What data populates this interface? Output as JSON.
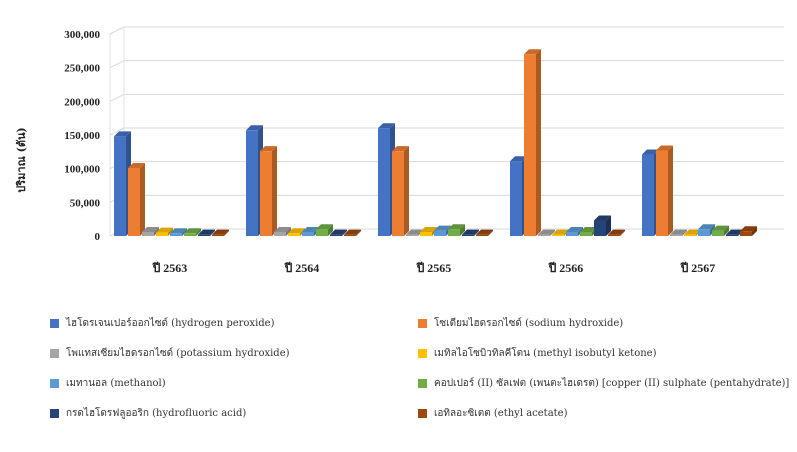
{
  "chart_data": {
    "type": "bar",
    "style": "3d-clustered-column",
    "ylabel": "ปริมาณ (ตัน)",
    "ylim": [
      0,
      300000
    ],
    "yticks": [
      0,
      50000,
      100000,
      150000,
      200000,
      250000,
      300000
    ],
    "ytick_labels": [
      "0",
      "50,000",
      "100,000",
      "150,000",
      "200,000",
      "250,000",
      "300,000"
    ],
    "grid": true,
    "legend_position": "bottom",
    "categories": [
      "ปี 2563",
      "ปี 2564",
      "ปี 2565",
      "ปี 2566",
      "ปี 2567"
    ],
    "series": [
      {
        "name": "ไฮโดรเจนเปอร์ออกไซด์ (hydrogen peroxide)",
        "color": "#4472C4",
        "values": [
          148000,
          157000,
          160000,
          111000,
          121000
        ]
      },
      {
        "name": "โซเดียมไฮดรอกไซด์ (sodium hydroxide)",
        "color": "#ED7D31",
        "values": [
          101000,
          126000,
          126000,
          270000,
          127000
        ]
      },
      {
        "name": "โพแทสเซียมไฮดรอกไซด์ (potassium hydroxide)",
        "color": "#A5A5A5",
        "values": [
          6000,
          6000,
          2000,
          2000,
          2000
        ]
      },
      {
        "name": "เมทิลไอโซบิวทิลคีโตน (methyl isobutyl ketone)",
        "color": "#FFC000",
        "values": [
          5000,
          4000,
          6000,
          2000,
          2000
        ]
      },
      {
        "name": "เมทานอล (methanol)",
        "color": "#5B9BD5",
        "values": [
          4000,
          6000,
          8000,
          6000,
          10000
        ]
      },
      {
        "name": "คอปเปอร์ (II) ซัลเฟต (เพนตะไฮเดรต) [copper (II) sulphate (pentahydrate)]",
        "color": "#70AD47",
        "values": [
          4000,
          10000,
          10000,
          6000,
          8000
        ]
      },
      {
        "name": "กรดไฮโดรฟลูออริก (hydrofluoric acid)",
        "color": "#264478",
        "values": [
          2000,
          2000,
          2000,
          23000,
          2000
        ]
      },
      {
        "name": "เอทิลอะซิเตต (ethyl acetate)",
        "color": "#9E480E",
        "values": [
          2000,
          2000,
          2000,
          2000,
          7000
        ]
      }
    ]
  }
}
